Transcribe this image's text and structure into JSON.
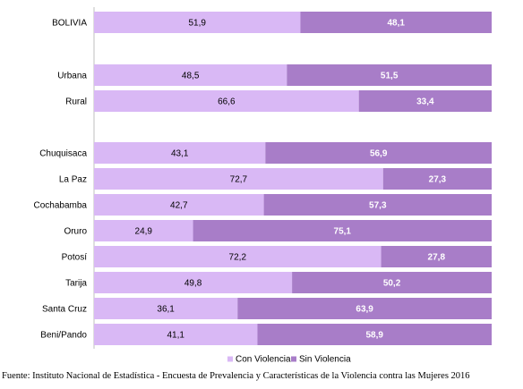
{
  "chart_data": {
    "type": "bar",
    "orientation": "horizontal",
    "stacked": "100%",
    "categories": [
      "BOLIVIA",
      "Urbana",
      "Rural",
      "Chuquisaca",
      "La Paz",
      "Cochabamba",
      "Oruro",
      "Potosí",
      "Tarija",
      "Santa Cruz",
      "Beni/Pando"
    ],
    "groups": [
      [
        "BOLIVIA"
      ],
      [
        "Urbana",
        "Rural"
      ],
      [
        "Chuquisaca",
        "La Paz",
        "Cochabamba",
        "Oruro",
        "Potosí",
        "Tarija",
        "Santa Cruz",
        "Beni/Pando"
      ]
    ],
    "series": [
      {
        "name": "Con Violencia",
        "color": "#d9b8f5",
        "values": [
          51.9,
          48.5,
          66.6,
          43.1,
          72.7,
          42.7,
          24.9,
          72.2,
          49.8,
          36.1,
          41.1
        ]
      },
      {
        "name": "Sin Violencia",
        "color": "#a87dc8",
        "values": [
          48.1,
          51.5,
          33.4,
          56.9,
          27.3,
          57.3,
          75.1,
          27.8,
          50.2,
          63.9,
          58.9
        ]
      }
    ],
    "display_labels": {
      "Con Violencia": [
        "51,9",
        "48,5",
        "66,6",
        "43,1",
        "72,7",
        "42,7",
        "24,9",
        "72,2",
        "49,8",
        "36,1",
        "41,1"
      ],
      "Sin Violencia": [
        "48,1",
        "51,5",
        "33,4",
        "56,9",
        "27,3",
        "57,3",
        "75,1",
        "27,8",
        "50,2",
        "63,9",
        "58,9"
      ]
    },
    "xlim": [
      0,
      100
    ],
    "grid": false,
    "legend_position": "bottom"
  },
  "source_note": "Fuente: Instituto Nacional de Estadística - Encuesta de Prevalencia y Características de la Violencia contra las Mujeres 2016"
}
